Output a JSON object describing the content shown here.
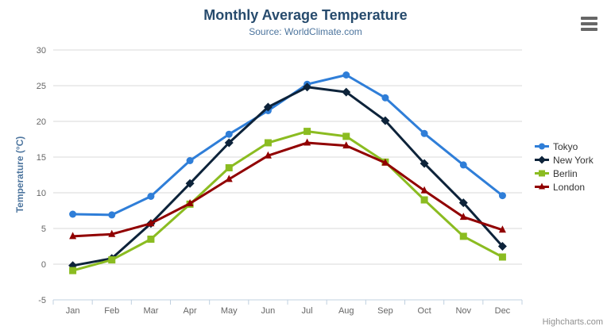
{
  "chart": {
    "title": "Monthly Average Temperature",
    "subtitle": "Source: WorldClimate.com",
    "credits": "Highcharts.com",
    "colors": {
      "title": "#274b6d",
      "subtitle": "#4d759e",
      "axis_title": "#4d759e",
      "axis_labels": "#666666",
      "grid": "#d8d8d8",
      "axis_line": "#c0d0e0",
      "legend_text": "#333333",
      "credits": "#909090",
      "menu_icon": "#666666",
      "background": "#ffffff"
    }
  },
  "chart_data": {
    "type": "line",
    "title": "Monthly Average Temperature",
    "subtitle": "Source: WorldClimate.com",
    "xlabel": "",
    "ylabel": "Temperature (°C)",
    "ylim": [
      -5,
      30
    ],
    "ytick_interval": 5,
    "ytick_labels": [
      "-5",
      "0",
      "5",
      "10",
      "15",
      "20",
      "25",
      "30"
    ],
    "grid": true,
    "legend_position": "right",
    "categories": [
      "Jan",
      "Feb",
      "Mar",
      "Apr",
      "May",
      "Jun",
      "Jul",
      "Aug",
      "Sep",
      "Oct",
      "Nov",
      "Dec"
    ],
    "series": [
      {
        "name": "Tokyo",
        "color": "#2f7ed8",
        "marker": "circle",
        "values": [
          7.0,
          6.9,
          9.5,
          14.5,
          18.2,
          21.5,
          25.2,
          26.5,
          23.3,
          18.3,
          13.9,
          9.6
        ]
      },
      {
        "name": "New York",
        "color": "#0d233a",
        "marker": "diamond",
        "values": [
          -0.2,
          0.8,
          5.7,
          11.3,
          17.0,
          22.0,
          24.8,
          24.1,
          20.1,
          14.1,
          8.6,
          2.5
        ]
      },
      {
        "name": "Berlin",
        "color": "#8bbc21",
        "marker": "square",
        "values": [
          -0.9,
          0.6,
          3.5,
          8.4,
          13.5,
          17.0,
          18.6,
          17.9,
          14.3,
          9.0,
          3.9,
          1.0
        ]
      },
      {
        "name": "London",
        "color": "#910000",
        "marker": "triangle",
        "values": [
          3.9,
          4.2,
          5.7,
          8.5,
          11.9,
          15.2,
          17.0,
          16.6,
          14.2,
          10.3,
          6.6,
          4.8
        ]
      }
    ]
  }
}
